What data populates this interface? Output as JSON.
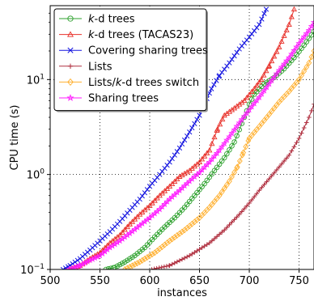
{
  "chart_data": {
    "type": "line",
    "xlabel": "instances",
    "ylabel": "CPU time (s)",
    "xlim": [
      500,
      765
    ],
    "ylim": [
      0.1,
      60
    ],
    "yscale": "log",
    "grid": "dotted",
    "legend_position": "top-left",
    "x_ticks": [
      500,
      550,
      600,
      650,
      700,
      750
    ],
    "y_ticks": [
      {
        "value": 0.1,
        "label_base": "10",
        "label_exp": "−1"
      },
      {
        "value": 1,
        "label_base": "10",
        "label_exp": "0"
      },
      {
        "value": 10,
        "label_base": "10",
        "label_exp": "1"
      }
    ],
    "series": [
      {
        "name": "k-d trees",
        "name_parts": [
          {
            "t": "k",
            "i": true
          },
          {
            "t": "-d trees",
            "i": false
          }
        ],
        "color": "#2ca02c",
        "marker": "circle",
        "points": [
          [
            556,
            0.1
          ],
          [
            565,
            0.105
          ],
          [
            575,
            0.12
          ],
          [
            585,
            0.14
          ],
          [
            595,
            0.17
          ],
          [
            605,
            0.22
          ],
          [
            615,
            0.28
          ],
          [
            625,
            0.35
          ],
          [
            635,
            0.45
          ],
          [
            645,
            0.6
          ],
          [
            655,
            0.8
          ],
          [
            665,
            1.1
          ],
          [
            675,
            1.5
          ],
          [
            685,
            2.2
          ],
          [
            695,
            4.0
          ],
          [
            700,
            5.5
          ],
          [
            705,
            7.0
          ],
          [
            715,
            9.0
          ],
          [
            725,
            10.5
          ],
          [
            735,
            13.0
          ],
          [
            745,
            17.0
          ],
          [
            755,
            23.0
          ],
          [
            765,
            32.0
          ]
        ]
      },
      {
        "name": "k-d trees (TACAS23)",
        "name_parts": [
          {
            "t": "k",
            "i": true
          },
          {
            "t": "-d trees (TACAS23)",
            "i": false
          }
        ],
        "color": "#e8312a",
        "marker": "triangle",
        "points": [
          [
            520,
            0.1
          ],
          [
            530,
            0.11
          ],
          [
            540,
            0.13
          ],
          [
            550,
            0.15
          ],
          [
            560,
            0.19
          ],
          [
            570,
            0.23
          ],
          [
            580,
            0.3
          ],
          [
            590,
            0.38
          ],
          [
            600,
            0.47
          ],
          [
            610,
            0.6
          ],
          [
            620,
            0.75
          ],
          [
            630,
            0.95
          ],
          [
            640,
            1.1
          ],
          [
            650,
            1.35
          ],
          [
            660,
            1.8
          ],
          [
            668,
            3.0
          ],
          [
            675,
            4.2
          ],
          [
            685,
            5.0
          ],
          [
            695,
            6.0
          ],
          [
            705,
            8.0
          ],
          [
            712,
            10.0
          ],
          [
            720,
            14.0
          ],
          [
            730,
            22.0
          ],
          [
            740,
            38.0
          ],
          [
            745,
            55.0
          ]
        ]
      },
      {
        "name": "Covering sharing trees",
        "name_parts": [
          {
            "t": "Covering sharing trees",
            "i": false
          }
        ],
        "color": "#1515e0",
        "marker": "x",
        "points": [
          [
            513,
            0.1
          ],
          [
            520,
            0.11
          ],
          [
            530,
            0.13
          ],
          [
            540,
            0.16
          ],
          [
            550,
            0.2
          ],
          [
            560,
            0.25
          ],
          [
            570,
            0.32
          ],
          [
            580,
            0.42
          ],
          [
            590,
            0.55
          ],
          [
            600,
            0.75
          ],
          [
            610,
            1.0
          ],
          [
            620,
            1.35
          ],
          [
            630,
            1.9
          ],
          [
            640,
            2.8
          ],
          [
            650,
            4.2
          ],
          [
            655,
            5.5
          ],
          [
            662,
            8.0
          ],
          [
            670,
            11.0
          ],
          [
            680,
            15.0
          ],
          [
            690,
            21.0
          ],
          [
            700,
            28.0
          ],
          [
            710,
            38.0
          ],
          [
            717,
            55.0
          ]
        ]
      },
      {
        "name": "Lists",
        "name_parts": [
          {
            "t": "Lists",
            "i": false
          }
        ],
        "color": "#b03040",
        "marker": "plus",
        "points": [
          [
            602,
            0.1
          ],
          [
            620,
            0.11
          ],
          [
            640,
            0.14
          ],
          [
            660,
            0.19
          ],
          [
            675,
            0.26
          ],
          [
            690,
            0.38
          ],
          [
            700,
            0.5
          ],
          [
            710,
            0.68
          ],
          [
            720,
            0.9
          ],
          [
            730,
            1.2
          ],
          [
            740,
            1.6
          ],
          [
            750,
            2.4
          ],
          [
            760,
            4.0
          ],
          [
            765,
            5.5
          ]
        ]
      },
      {
        "name": "Lists/k-d trees switch",
        "name_parts": [
          {
            "t": "Lists/",
            "i": false
          },
          {
            "t": "k",
            "i": true
          },
          {
            "t": "-d trees switch",
            "i": false
          }
        ],
        "color": "#ffb030",
        "marker": "diamond",
        "points": [
          [
            575,
            0.1
          ],
          [
            590,
            0.12
          ],
          [
            605,
            0.15
          ],
          [
            620,
            0.2
          ],
          [
            635,
            0.26
          ],
          [
            650,
            0.35
          ],
          [
            660,
            0.45
          ],
          [
            670,
            0.6
          ],
          [
            680,
            0.85
          ],
          [
            688,
            1.2
          ],
          [
            694,
            1.7
          ],
          [
            700,
            2.4
          ],
          [
            710,
            3.2
          ],
          [
            720,
            4.3
          ],
          [
            730,
            5.8
          ],
          [
            740,
            7.5
          ],
          [
            750,
            10.0
          ],
          [
            760,
            15.0
          ],
          [
            765,
            20.0
          ]
        ]
      },
      {
        "name": "Sharing trees",
        "name_parts": [
          {
            "t": "Sharing trees",
            "i": false
          }
        ],
        "color": "#ff1aff",
        "marker": "star",
        "points": [
          [
            519,
            0.1
          ],
          [
            530,
            0.11
          ],
          [
            540,
            0.125
          ],
          [
            550,
            0.14
          ],
          [
            560,
            0.17
          ],
          [
            570,
            0.2
          ],
          [
            580,
            0.24
          ],
          [
            590,
            0.29
          ],
          [
            600,
            0.35
          ],
          [
            610,
            0.43
          ],
          [
            620,
            0.55
          ],
          [
            630,
            0.68
          ],
          [
            640,
            0.85
          ],
          [
            650,
            1.05
          ],
          [
            660,
            1.35
          ],
          [
            670,
            1.8
          ],
          [
            680,
            2.5
          ],
          [
            690,
            3.5
          ],
          [
            700,
            4.8
          ],
          [
            710,
            6.5
          ],
          [
            720,
            9.0
          ],
          [
            730,
            12.5
          ],
          [
            740,
            17.0
          ],
          [
            750,
            24.0
          ],
          [
            760,
            33.0
          ],
          [
            765,
            40.0
          ]
        ]
      }
    ]
  }
}
